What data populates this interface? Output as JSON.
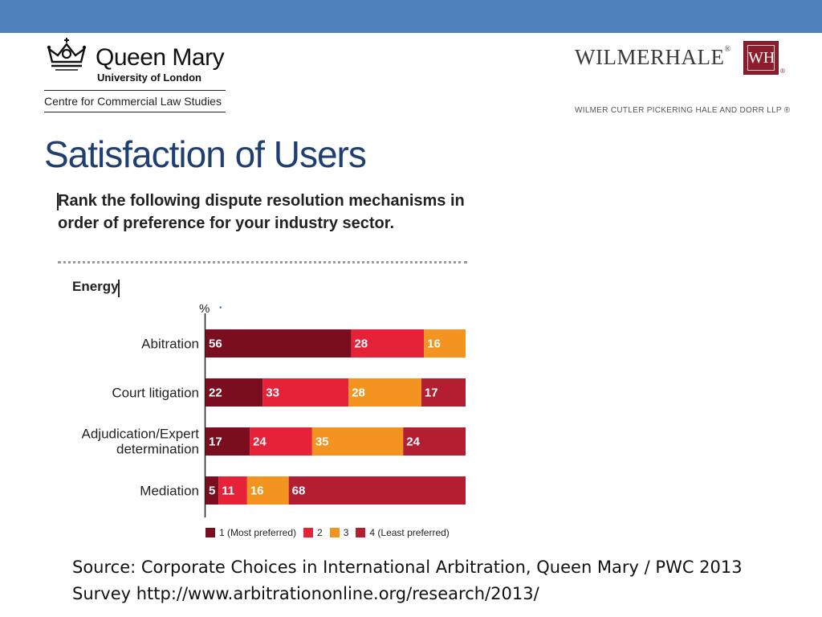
{
  "header": {
    "bar_color": "#4f81bd"
  },
  "qm_logo": {
    "name": "Queen Mary",
    "university": "University of London",
    "centre": "Centre for Commercial Law Studies",
    "icon": "crown-icon"
  },
  "wh_logo": {
    "word": "WILMERHALE",
    "box_text": "WH",
    "reg": "®",
    "subtitle": "WILMER CUTLER PICKERING HALE AND DORR LLP ®"
  },
  "slide": {
    "title": "Satisfaction of Users",
    "source": "Source: Corporate Choices in International Arbitration, Queen Mary / PWC 2013 Survey http://www.arbitrationonline.org/research/2013/"
  },
  "chart_data": {
    "type": "bar",
    "orientation": "horizontal",
    "stacked": true,
    "title": "Rank the following dispute resolution mechanisms in order of preference for your industry sector.",
    "subtitle": "Energy",
    "unit_label": "%",
    "categories": [
      "Abitration",
      "Court litigation",
      "Adjudication/Expert determination",
      "Mediation"
    ],
    "series": [
      {
        "name": "1 (Most preferred)",
        "color": "#7a0e1e",
        "values": [
          56,
          22,
          17,
          5
        ]
      },
      {
        "name": "2",
        "color": "#e62239",
        "values": [
          28,
          33,
          24,
          11
        ]
      },
      {
        "name": "3",
        "color": "#f39420",
        "values": [
          16,
          28,
          35,
          16
        ]
      },
      {
        "name": "4 (Least preferred)",
        "color": "#b31f30",
        "values": [
          0,
          17,
          24,
          68
        ]
      }
    ],
    "xlim": [
      0,
      100
    ],
    "legend_position": "bottom"
  }
}
